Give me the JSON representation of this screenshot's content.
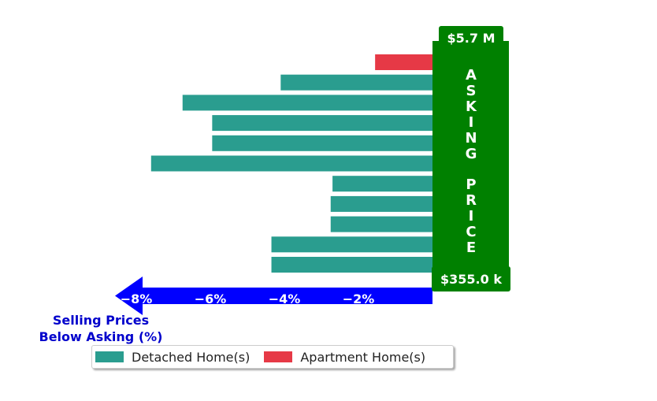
{
  "chart_data": {
    "type": "bar",
    "orientation": "horizontal",
    "xlim": [
      -9.3,
      0
    ],
    "xticks": [
      -8,
      -6,
      -4,
      -2
    ],
    "xtick_labels": [
      "−8%",
      "−6%",
      "−4%",
      "−2%"
    ],
    "xlabel_lines": [
      "Selling Prices",
      "Below Asking (%)"
    ],
    "top_price_label": "$5.7 M",
    "bottom_price_label": "$355.0 k",
    "asking_price_text": "ASKING PRICE",
    "legend": {
      "placement": "bottom-left",
      "entries": [
        {
          "label": "Detached Home(s)",
          "color": "#2a9d8f"
        },
        {
          "label": "Apartment Home(s)",
          "color": "#e63946"
        }
      ]
    },
    "bars": [
      {
        "value": -1.55,
        "type": "Apartment Home(s)"
      },
      {
        "value": -4.1,
        "type": "Detached Home(s)"
      },
      {
        "value": -6.75,
        "type": "Detached Home(s)"
      },
      {
        "value": -5.95,
        "type": "Detached Home(s)"
      },
      {
        "value": -5.95,
        "type": "Detached Home(s)"
      },
      {
        "value": -7.6,
        "type": "Detached Home(s)"
      },
      {
        "value": -2.7,
        "type": "Detached Home(s)"
      },
      {
        "value": -2.75,
        "type": "Detached Home(s)"
      },
      {
        "value": -2.75,
        "type": "Detached Home(s)"
      },
      {
        "value": -4.35,
        "type": "Detached Home(s)"
      },
      {
        "value": -4.35,
        "type": "Detached Home(s)"
      }
    ]
  },
  "colors": {
    "detached": "#2a9d8f",
    "apartment": "#e63946",
    "asking_box": "#008000",
    "axis_arrow": "#0000ff",
    "axis_title": "#0000cc"
  }
}
